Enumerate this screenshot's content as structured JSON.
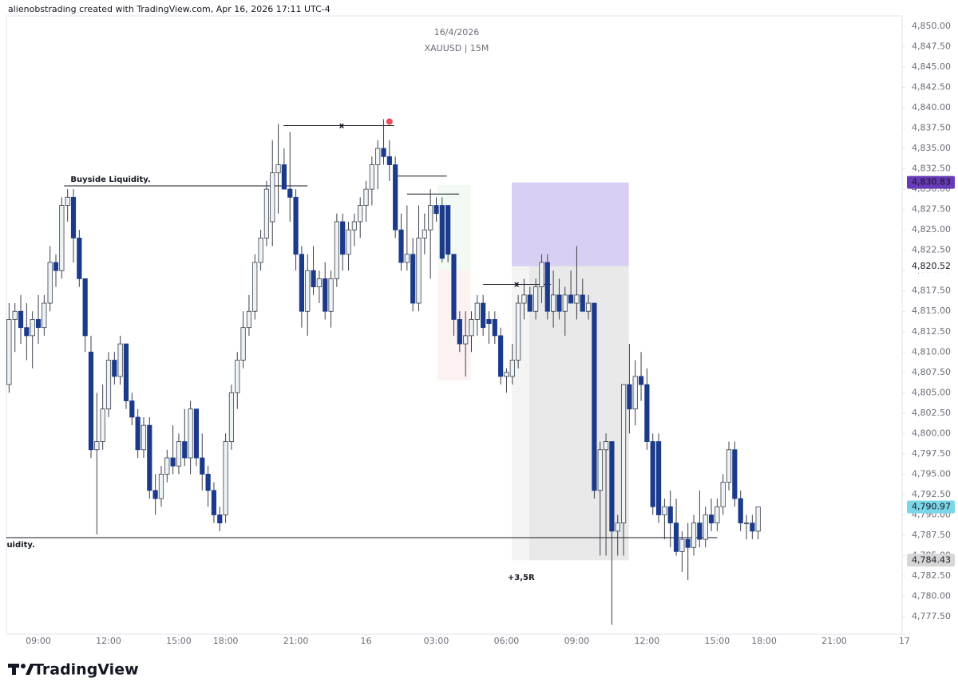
{
  "header": "alienobstrading created with TradingView.com, Apr 16, 2026 17:11 UTC-4",
  "brand": "TradingView",
  "chart_data": {
    "type": "candlestick",
    "title": "16/4/2026",
    "subtitle": "XAUUSD | 15M",
    "up_color": "#eef3f6",
    "down_color": "#1b3a8c",
    "xlim": [
      -0.46,
      152.6
    ],
    "ylim": [
      4775.35,
      4851.27
    ],
    "xticks": [
      {
        "value": 5,
        "label": "09:00"
      },
      {
        "value": 17,
        "label": "12:00"
      },
      {
        "value": 29,
        "label": "15:00"
      },
      {
        "value": 37,
        "label": "18:00"
      },
      {
        "value": 49,
        "label": "21:00"
      },
      {
        "value": 61,
        "label": "16"
      },
      {
        "value": 73,
        "label": "03:00"
      },
      {
        "value": 85,
        "label": "06:00"
      },
      {
        "value": 97,
        "label": "09:00"
      },
      {
        "value": 109,
        "label": "12:00"
      },
      {
        "value": 121,
        "label": "15:00"
      },
      {
        "value": 129,
        "label": "18:00"
      },
      {
        "value": 141,
        "label": "21:00"
      },
      {
        "value": 153,
        "label": "17"
      }
    ],
    "yticks": [
      {
        "value": 4777.5,
        "label": "4,777.50"
      },
      {
        "value": 4780,
        "label": "4,780.00"
      },
      {
        "value": 4782.5,
        "label": "4,782.50"
      },
      {
        "value": 4785,
        "label": "4,785.00"
      },
      {
        "value": 4787.5,
        "label": "4,787.50"
      },
      {
        "value": 4790,
        "label": "4,790.00"
      },
      {
        "value": 4792.5,
        "label": "4,792.50"
      },
      {
        "value": 4795,
        "label": "4,795.00"
      },
      {
        "value": 4797.5,
        "label": "4,797.50"
      },
      {
        "value": 4800,
        "label": "4,800.00"
      },
      {
        "value": 4802.5,
        "label": "4,802.50"
      },
      {
        "value": 4805,
        "label": "4,805.00"
      },
      {
        "value": 4807.5,
        "label": "4,807.50"
      },
      {
        "value": 4810,
        "label": "4,810.00"
      },
      {
        "value": 4812.5,
        "label": "4,812.50"
      },
      {
        "value": 4815,
        "label": "4,815.00"
      },
      {
        "value": 4817.5,
        "label": "4,817.50"
      },
      {
        "value": 4820,
        "label": "4,820.00"
      },
      {
        "value": 4822.5,
        "label": "4,822.50"
      },
      {
        "value": 4825,
        "label": "4,825.00"
      },
      {
        "value": 4827.5,
        "label": "4,827.50"
      },
      {
        "value": 4830,
        "label": "4,830.00"
      },
      {
        "value": 4832.5,
        "label": "4,832.50"
      },
      {
        "value": 4835,
        "label": "4,835.00"
      },
      {
        "value": 4837.5,
        "label": "4,837.50"
      },
      {
        "value": 4840,
        "label": "4,840.00"
      },
      {
        "value": 4842.5,
        "label": "4,842.50"
      },
      {
        "value": 4845,
        "label": "4,845.00"
      },
      {
        "value": 4847.5,
        "label": "4,847.50"
      },
      {
        "value": 4850,
        "label": "4,850.00"
      }
    ],
    "ohlc": [
      [
        4806,
        4816,
        4805,
        4814
      ],
      [
        4814,
        4816,
        4810,
        4815
      ],
      [
        4815,
        4817,
        4811,
        4813
      ],
      [
        4813,
        4816,
        4809,
        4812
      ],
      [
        4812,
        4815,
        4808,
        4814
      ],
      [
        4814,
        4817,
        4811,
        4813
      ],
      [
        4813,
        4817,
        4812,
        4816
      ],
      [
        4816,
        4823,
        4815,
        4821
      ],
      [
        4821,
        4822,
        4818,
        4820
      ],
      [
        4820,
        4829,
        4819,
        4828
      ],
      [
        4828,
        4830,
        4826,
        4829
      ],
      [
        4829,
        4830,
        4821,
        4824
      ],
      [
        4824,
        4825,
        4818,
        4819
      ],
      [
        4819,
        4819,
        4810,
        4812
      ],
      [
        4810,
        4812,
        4797,
        4798
      ],
      [
        4798,
        4805,
        4787.6,
        4799
      ],
      [
        4799,
        4806,
        4798,
        4803
      ],
      [
        4803,
        4810,
        4802,
        4809
      ],
      [
        4809,
        4810,
        4806,
        4807
      ],
      [
        4807,
        4812,
        4806,
        4811
      ],
      [
        4811,
        4811,
        4803,
        4804
      ],
      [
        4804,
        4805,
        4801,
        4802
      ],
      [
        4802,
        4803,
        4797,
        4798
      ],
      [
        4798,
        4802,
        4797,
        4801
      ],
      [
        4801,
        4802,
        4792,
        4793
      ],
      [
        4793,
        4795,
        4790,
        4792
      ],
      [
        4792,
        4796,
        4791,
        4795
      ],
      [
        4795,
        4798,
        4794,
        4797
      ],
      [
        4797,
        4801,
        4795,
        4796
      ],
      [
        4796,
        4800,
        4795,
        4799
      ],
      [
        4799,
        4803,
        4796,
        4797
      ],
      [
        4797,
        4804,
        4795,
        4803
      ],
      [
        4803,
        4803,
        4796,
        4797
      ],
      [
        4797,
        4800,
        4793,
        4795
      ],
      [
        4795,
        4796,
        4791,
        4793
      ],
      [
        4793,
        4794,
        4789,
        4790
      ],
      [
        4790,
        4791,
        4788,
        4789
      ],
      [
        4790,
        4800,
        4789,
        4799
      ],
      [
        4799,
        4806,
        4798,
        4805
      ],
      [
        4805,
        4810,
        4803,
        4809
      ],
      [
        4809,
        4815,
        4808,
        4813
      ],
      [
        4813,
        4817,
        4812,
        4815
      ],
      [
        4815,
        4822,
        4814,
        4821
      ],
      [
        4821,
        4825,
        4820,
        4824
      ],
      [
        4824,
        4831,
        4823,
        4830
      ],
      [
        4826,
        4836,
        4823,
        4832
      ],
      [
        4832,
        4838,
        4827,
        4833
      ],
      [
        4833,
        4835,
        4830,
        4830
      ],
      [
        4830,
        4837,
        4826,
        4829
      ],
      [
        4829,
        4830,
        4820,
        4822
      ],
      [
        4822,
        4823,
        4813,
        4815
      ],
      [
        4815,
        4822,
        4812,
        4820
      ],
      [
        4820,
        4823,
        4817,
        4818
      ],
      [
        4818,
        4820,
        4816,
        4819
      ],
      [
        4819,
        4821,
        4814,
        4815
      ],
      [
        4815,
        4820,
        4813,
        4819
      ],
      [
        4819,
        4827,
        4818,
        4826
      ],
      [
        4826,
        4827,
        4820,
        4822
      ],
      [
        4822,
        4826,
        4820,
        4825
      ],
      [
        4825,
        4827,
        4823,
        4826
      ],
      [
        4826,
        4829,
        4824,
        4828
      ],
      [
        4828,
        4831,
        4826,
        4830
      ],
      [
        4830,
        4834,
        4828,
        4833
      ],
      [
        4833,
        4836,
        4830,
        4835
      ],
      [
        4835,
        4838.6,
        4833,
        4834
      ],
      [
        4834,
        4836,
        4831,
        4833
      ],
      [
        4833,
        4834,
        4824,
        4825
      ],
      [
        4825,
        4827,
        4820,
        4821
      ],
      [
        4821,
        4828,
        4820,
        4822
      ],
      [
        4822,
        4824,
        4815,
        4816
      ],
      [
        4816,
        4828,
        4815,
        4824
      ],
      [
        4824,
        4827,
        4822,
        4825
      ],
      [
        4825,
        4830,
        4819,
        4828
      ],
      [
        4828,
        4829,
        4826,
        4827
      ],
      [
        4828,
        4829,
        4821,
        4821.5
      ],
      [
        4828,
        4828,
        4821,
        4822
      ],
      [
        4822,
        4822,
        4812,
        4814
      ],
      [
        4814,
        4815,
        4810,
        4811
      ],
      [
        4811,
        4815,
        4807,
        4812
      ],
      [
        4812,
        4815,
        4810,
        4814
      ],
      [
        4814,
        4817,
        4812,
        4816
      ],
      [
        4816,
        4817,
        4812,
        4813
      ],
      [
        4814,
        4815,
        4811,
        4813.5
      ],
      [
        4814,
        4815,
        4811,
        4812
      ],
      [
        4812,
        4813,
        4806,
        4807
      ],
      [
        4807,
        4808,
        4805,
        4807.5
      ],
      [
        4807,
        4811,
        4806,
        4809
      ],
      [
        4809,
        4817,
        4808,
        4816
      ],
      [
        4816,
        4819,
        4814,
        4817
      ],
      [
        4817,
        4818,
        4815,
        4815
      ],
      [
        4815,
        4819,
        4814,
        4818
      ],
      [
        4818,
        4822,
        4816,
        4821
      ],
      [
        4821,
        4822,
        4814,
        4815
      ],
      [
        4815,
        4820,
        4813,
        4817
      ],
      [
        4817,
        4819,
        4814,
        4815
      ],
      [
        4815,
        4818,
        4812,
        4817
      ],
      [
        4817,
        4820,
        4816,
        4816
      ],
      [
        4816,
        4823,
        4814,
        4817
      ],
      [
        4817,
        4819,
        4815,
        4815
      ],
      [
        4815,
        4817,
        4814,
        4816
      ],
      [
        4816,
        4816,
        4792,
        4793
      ],
      [
        4793,
        4799,
        4785,
        4798
      ],
      [
        4798,
        4800,
        4785,
        4799
      ],
      [
        4799,
        4799,
        4776.5,
        4788
      ],
      [
        4788,
        4790,
        4785,
        4789
      ],
      [
        4789,
        4806,
        4785,
        4806
      ],
      [
        4806,
        4811,
        4800,
        4803
      ],
      [
        4803,
        4809,
        4801,
        4807
      ],
      [
        4807,
        4810,
        4804,
        4806
      ],
      [
        4806,
        4808,
        4798,
        4799
      ],
      [
        4799,
        4800,
        4790,
        4791
      ],
      [
        4799,
        4800,
        4789,
        4790
      ],
      [
        4790,
        4792,
        4787,
        4791
      ],
      [
        4791,
        4793,
        4786,
        4789
      ],
      [
        4789,
        4792,
        4785,
        4785.5
      ],
      [
        4785.5,
        4788,
        4783,
        4787
      ],
      [
        4787,
        4789,
        4782,
        4786
      ],
      [
        4786,
        4790,
        4785,
        4789
      ],
      [
        4789,
        4793,
        4786,
        4787
      ],
      [
        4787,
        4791,
        4786,
        4790
      ],
      [
        4790,
        4792,
        4788,
        4789
      ],
      [
        4789,
        4792,
        4788,
        4791
      ],
      [
        4791,
        4795,
        4790,
        4794
      ],
      [
        4794,
        4799,
        4793,
        4798
      ],
      [
        4798,
        4799,
        4791,
        4792
      ],
      [
        4792,
        4793,
        4788,
        4789
      ],
      [
        4789,
        4790,
        4787,
        4789
      ],
      [
        4789,
        4790,
        4787,
        4788
      ],
      [
        4788,
        4791,
        4787,
        4790.97
      ]
    ],
    "boxes": [
      {
        "top": 4830.83,
        "bottom": 4820.52,
        "from": 85.9,
        "to": 105.9,
        "color": "#d9cff2"
      },
      {
        "top": 4820.52,
        "bottom": 4784.43,
        "from": 85.9,
        "to": 105.9,
        "color": "#f4f4f4"
      },
      {
        "top": 4820.52,
        "bottom": 4784.43,
        "from": 88.9,
        "to": 105.9,
        "color": "#e9e9e9"
      },
      {
        "top": 4830.5,
        "bottom": 4820,
        "from": 73.2,
        "to": 78.9,
        "color": "#f3faf3"
      },
      {
        "top": 4820,
        "bottom": 4806.5,
        "from": 73.2,
        "to": 78.9,
        "color": "#fdf2f2"
      }
    ],
    "lines": [
      {
        "price": 4830.4,
        "from": 9.4,
        "to": 51
      },
      {
        "price": 4837.8,
        "from": 46.9,
        "to": 65.8
      },
      {
        "price": 4831.6,
        "from": 65.8,
        "to": 74.8
      },
      {
        "price": 4829.4,
        "from": 68,
        "to": 76.9
      },
      {
        "price": 4818.3,
        "from": 81,
        "to": 92.6
      },
      {
        "price": 4787.2,
        "from": -0.5,
        "to": 121
      }
    ],
    "annotations": [
      {
        "text": "Buyside Liquidity.",
        "price": 4831.2,
        "at": 10.5,
        "color": "#2155e6"
      },
      {
        "text": "uidity.",
        "price": 4786.3,
        "at": -0.4,
        "color": "#2155e6"
      },
      {
        "text": "x",
        "price": 4837.8,
        "at": 56.4,
        "color": "#131722"
      },
      {
        "text": "x",
        "price": 4818.3,
        "at": 86.3,
        "color": "#131722"
      },
      {
        "text": "+3,5R",
        "price": 4782.3,
        "at": 85.2,
        "color": "#131722"
      }
    ],
    "dot": {
      "price": 4838.3,
      "at": 65,
      "color": "#f04c5c"
    },
    "price_labels": [
      {
        "value": 4830.83,
        "label": "4,830.83",
        "bg": "#673ab7",
        "fg": "#ffffff"
      },
      {
        "value": 4820.52,
        "label": "4,820.52",
        "bg": "#ffffff",
        "fg": "#131722"
      },
      {
        "value": 4790.97,
        "label": "4,790.97",
        "bg": "#7ad7e8",
        "fg": "#131722"
      },
      {
        "value": 4784.43,
        "label": "4,784.43",
        "bg": "#d6d6d6",
        "fg": "#131722"
      }
    ]
  }
}
